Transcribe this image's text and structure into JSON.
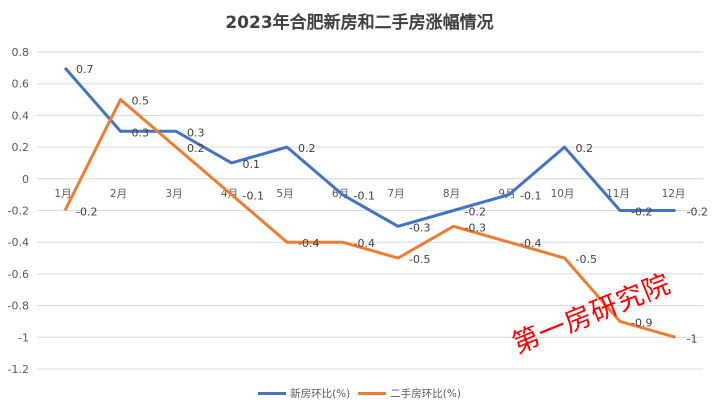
{
  "chart_data": {
    "type": "line",
    "title": "2023年合肥新房和二手房涨幅情况",
    "xlabel": "",
    "ylabel": "",
    "categories": [
      "1月",
      "2月",
      "3月",
      "4月",
      "5月",
      "6月",
      "7月",
      "8月",
      "9月",
      "10月",
      "11月",
      "12月"
    ],
    "series": [
      {
        "name": "新房环比(%)",
        "color": "#4472C4",
        "values": [
          0.7,
          0.3,
          0.3,
          0.1,
          0.2,
          -0.1,
          -0.3,
          -0.2,
          -0.1,
          0.2,
          -0.2,
          -0.2
        ]
      },
      {
        "name": "二手房环比(%)",
        "color": "#ED7D31",
        "values": [
          -0.2,
          0.5,
          0.2,
          -0.1,
          -0.4,
          -0.4,
          -0.5,
          -0.3,
          -0.4,
          -0.5,
          -0.9,
          -1
        ]
      }
    ],
    "ylim": [
      -1.2,
      0.8
    ],
    "yticks": [
      "0.8",
      "0.6",
      "0.4",
      "0.2",
      "0",
      "-0.2",
      "-0.4",
      "-0.6",
      "-0.8",
      "-1",
      "-1.2"
    ],
    "grid": true,
    "legend_position": "bottom",
    "data_labels": true
  },
  "watermark": "第一房研究院"
}
